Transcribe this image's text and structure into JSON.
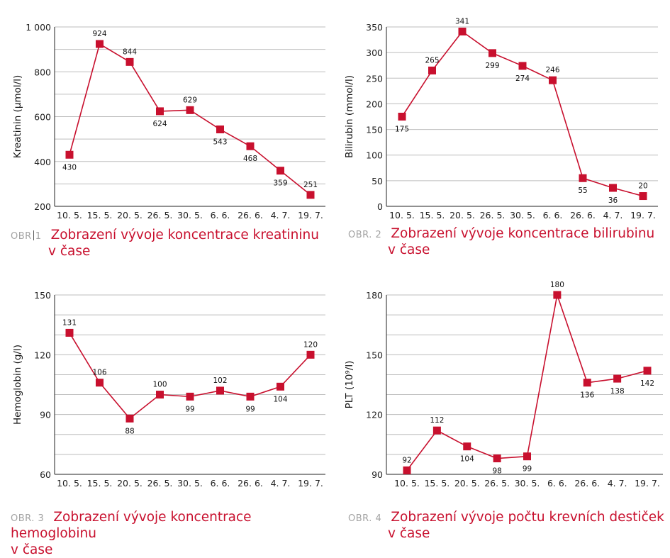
{
  "colors": {
    "series": "#c8102e",
    "grid": "#bdbdbd",
    "axis": "#222222",
    "caption_label": "#a3a3a3"
  },
  "captions": [
    {
      "label_a": "OBR",
      "label_b": "1",
      "text_line1": "Zobrazení vývoje koncentrace kreatininu",
      "text_line2": "v čase"
    },
    {
      "label": "OBR. 2",
      "text_line1": "Zobrazení vývoje koncentrace bilirubinu",
      "text_line2": "v čase"
    },
    {
      "label": "OBR. 3",
      "text_line1": "Zobrazení vývoje koncentrace hemoglobinu",
      "text_line2": "v čase"
    },
    {
      "label": "OBR. 4",
      "text_line1": "Zobrazení vývoje počtu krevních destiček",
      "text_line2": "v čase"
    }
  ],
  "chart_data": [
    {
      "type": "line",
      "ylabel": "Kreatinin (µmol/l)",
      "categories": [
        "10. 5.",
        "15. 5.",
        "20. 5.",
        "26. 5.",
        "30. 5.",
        "6. 6.",
        "26. 6.",
        "4. 7.",
        "19. 7."
      ],
      "values": [
        430,
        924,
        844,
        624,
        629,
        543,
        468,
        359,
        251
      ],
      "data_labels": [
        "430",
        "924",
        "844",
        "624",
        "629",
        "543",
        "468",
        "359",
        "251"
      ],
      "label_positions": [
        "below",
        "above",
        "above",
        "below",
        "above",
        "below",
        "below",
        "below",
        "above"
      ],
      "ylim": [
        200,
        1000
      ],
      "yticks": [
        200,
        400,
        600,
        800,
        1000
      ],
      "ytick_labels": [
        "200",
        "400",
        "600",
        "800",
        "1 000"
      ],
      "grid_step": 100,
      "grid": true,
      "legend": "none",
      "marker": "square"
    },
    {
      "type": "line",
      "ylabel": "Bilirubin (mmol/l)",
      "categories": [
        "10. 5.",
        "15. 5.",
        "20. 5.",
        "26. 5.",
        "30. 5.",
        "6. 6.",
        "26. 6.",
        "4. 7.",
        "19. 7."
      ],
      "values": [
        175,
        265,
        341,
        299,
        274,
        246,
        55,
        36,
        20
      ],
      "data_labels": [
        "175",
        "265",
        "341",
        "299",
        "274",
        "246",
        "55",
        "36",
        "20"
      ],
      "label_positions": [
        "below",
        "above",
        "above",
        "below",
        "below",
        "above",
        "below",
        "below",
        "above"
      ],
      "ylim": [
        0,
        350
      ],
      "yticks": [
        0,
        50,
        100,
        150,
        200,
        250,
        300,
        350
      ],
      "ytick_labels": [
        "0",
        "50",
        "100",
        "150",
        "200",
        "250",
        "300",
        "350"
      ],
      "grid_step": 50,
      "grid": true,
      "legend": "none",
      "marker": "square"
    },
    {
      "type": "line",
      "ylabel": "Hemoglobin (g/l)",
      "categories": [
        "10. 5.",
        "15. 5.",
        "20. 5.",
        "26. 5.",
        "30. 5.",
        "6. 6.",
        "26. 6.",
        "4. 7.",
        "19. 7."
      ],
      "values": [
        131,
        106,
        88,
        100,
        99,
        102,
        99,
        104,
        120
      ],
      "data_labels": [
        "131",
        "106",
        "88",
        "100",
        "99",
        "102",
        "99",
        "104",
        "120"
      ],
      "label_positions": [
        "above",
        "above",
        "below",
        "above",
        "below",
        "above",
        "below",
        "below",
        "above"
      ],
      "ylim": [
        60,
        150
      ],
      "yticks": [
        60,
        90,
        120,
        150
      ],
      "ytick_labels": [
        "60",
        "90",
        "120",
        "150"
      ],
      "grid_step": 10,
      "grid": true,
      "legend": "none",
      "marker": "square"
    },
    {
      "type": "line",
      "ylabel": "PLT (10⁹/l)",
      "categories": [
        "10. 5.",
        "15. 5.",
        "20. 5.",
        "26. 5.",
        "30. 5.",
        "6. 6.",
        "26. 6.",
        "4. 7.",
        "19. 7."
      ],
      "values": [
        92,
        112,
        104,
        98,
        99,
        180,
        136,
        138,
        142
      ],
      "data_labels": [
        "92",
        "112",
        "104",
        "98",
        "99",
        "180",
        "136",
        "138",
        "142"
      ],
      "label_positions": [
        "above",
        "above",
        "below",
        "below",
        "below",
        "above",
        "below",
        "below",
        "below"
      ],
      "ylim": [
        90,
        180
      ],
      "yticks": [
        90,
        120,
        150,
        180
      ],
      "ytick_labels": [
        "90",
        "120",
        "150",
        "180"
      ],
      "grid_step": 10,
      "grid": true,
      "legend": "none",
      "marker": "square"
    }
  ]
}
